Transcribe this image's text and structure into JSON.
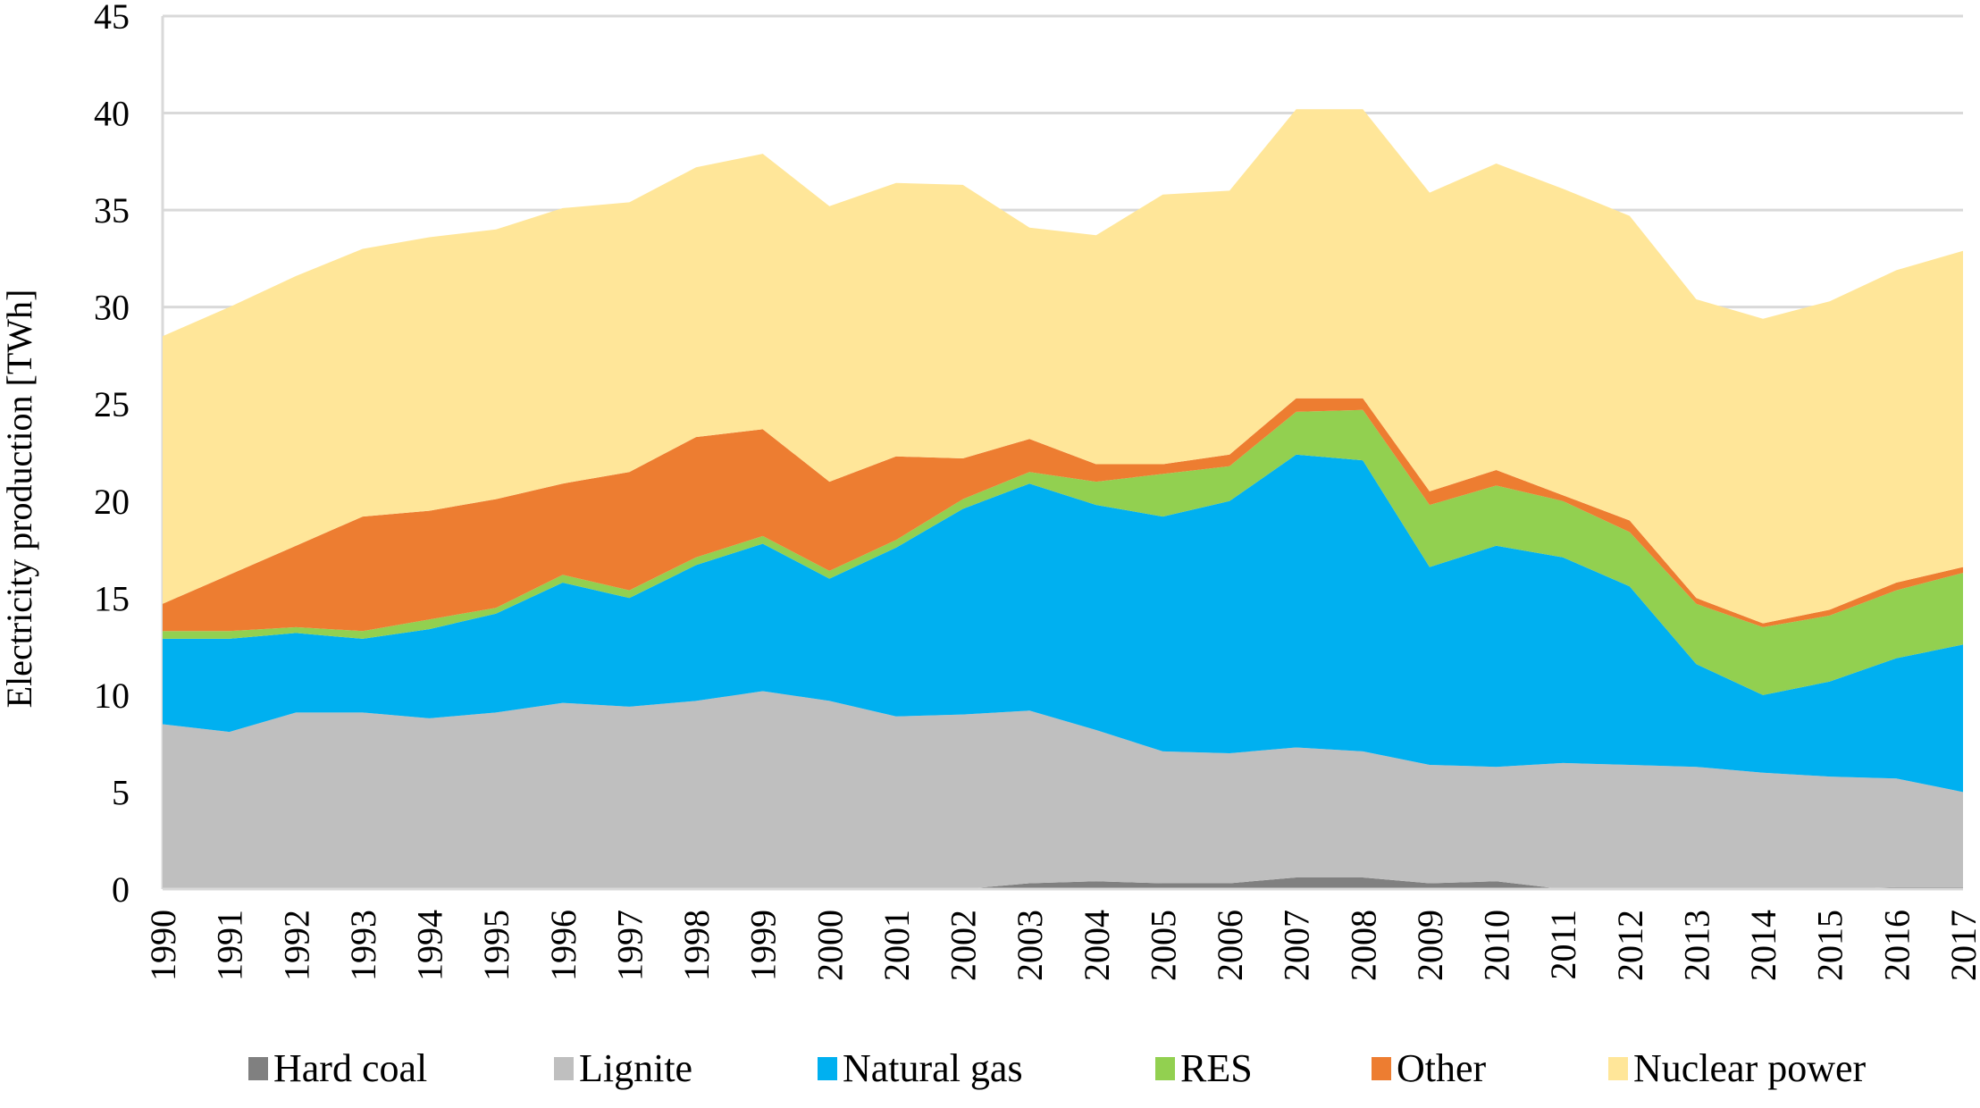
{
  "chart_data": {
    "type": "area",
    "stacked": true,
    "title": "",
    "xlabel": "",
    "ylabel": "Electricity production [TWh]",
    "ylim": [
      0,
      45
    ],
    "yticks": [
      0,
      5,
      10,
      15,
      20,
      25,
      30,
      35,
      40,
      45
    ],
    "grid": true,
    "legend_position": "bottom",
    "categories": [
      "1990",
      "1991",
      "1992",
      "1993",
      "1994",
      "1995",
      "1996",
      "1997",
      "1998",
      "1999",
      "2000",
      "2001",
      "2002",
      "2003",
      "2004",
      "2005",
      "2006",
      "2007",
      "2008",
      "2009",
      "2010",
      "2011",
      "2012",
      "2013",
      "2014",
      "2015",
      "2016",
      "2017"
    ],
    "series": [
      {
        "name": "Hard coal",
        "color": "#808080",
        "values": [
          0,
          0,
          0,
          0,
          0,
          0,
          0,
          0,
          0,
          0,
          0,
          0,
          0,
          0.3,
          0.4,
          0.3,
          0.3,
          0.6,
          0.6,
          0.3,
          0.4,
          0,
          0,
          0,
          0,
          0,
          0.1,
          0.1
        ]
      },
      {
        "name": "Lignite",
        "color": "#bfbfbf",
        "values": [
          8.5,
          8.1,
          9.1,
          9.1,
          8.8,
          9.1,
          9.6,
          9.4,
          9.7,
          10.2,
          9.7,
          8.9,
          9.0,
          8.9,
          7.8,
          6.8,
          6.7,
          6.7,
          6.5,
          6.1,
          5.9,
          6.5,
          6.4,
          6.3,
          6.0,
          5.8,
          5.6,
          4.9
        ]
      },
      {
        "name": "Natural gas",
        "color": "#00b0f0",
        "values": [
          4.4,
          4.8,
          4.1,
          3.8,
          4.6,
          5.1,
          6.2,
          5.6,
          7.0,
          7.6,
          6.3,
          8.7,
          10.6,
          11.7,
          11.6,
          12.1,
          13.0,
          15.1,
          15.0,
          10.2,
          11.4,
          10.6,
          9.2,
          5.3,
          4.0,
          4.9,
          6.2,
          7.6
        ]
      },
      {
        "name": "RES",
        "color": "#92d050",
        "values": [
          0.4,
          0.4,
          0.3,
          0.4,
          0.5,
          0.3,
          0.4,
          0.4,
          0.4,
          0.4,
          0.4,
          0.4,
          0.5,
          0.6,
          1.2,
          2.2,
          1.8,
          2.2,
          2.6,
          3.2,
          3.1,
          2.9,
          2.8,
          3.1,
          3.5,
          3.4,
          3.5,
          3.7
        ]
      },
      {
        "name": "Other",
        "color": "#ed7d31",
        "values": [
          1.4,
          2.9,
          4.2,
          5.9,
          5.6,
          5.6,
          4.7,
          6.1,
          6.2,
          5.5,
          4.6,
          4.3,
          2.1,
          1.7,
          0.9,
          0.5,
          0.6,
          0.7,
          0.6,
          0.7,
          0.8,
          0.3,
          0.6,
          0.3,
          0.2,
          0.3,
          0.4,
          0.3
        ]
      },
      {
        "name": "Nuclear power",
        "color": "#ffe699",
        "values": [
          13.8,
          13.8,
          13.9,
          13.8,
          14.1,
          13.9,
          14.2,
          13.9,
          13.9,
          14.2,
          14.2,
          14.1,
          14.1,
          10.9,
          11.8,
          13.9,
          13.6,
          14.9,
          14.9,
          15.4,
          15.8,
          15.8,
          15.7,
          15.4,
          15.7,
          15.9,
          16.1,
          16.3
        ]
      }
    ]
  }
}
